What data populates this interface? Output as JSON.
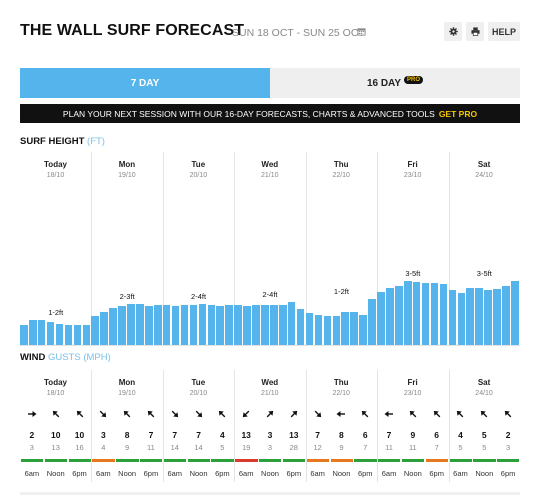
{
  "header": {
    "title": "THE WALL SURF FORECAST",
    "date_range": "SUN 18 OCT - SUN 25 OCT",
    "calendar_icon": "calendar-icon",
    "settings_icon": "gear-icon",
    "print_icon": "print-icon",
    "help_label": "HELP"
  },
  "tabs": [
    {
      "label": "7 DAY",
      "active": true
    },
    {
      "label": "16 DAY",
      "badge": "PRO",
      "active": false
    }
  ],
  "banner": {
    "text": "PLAN YOUR NEXT SESSION WITH OUR 16-DAY FORECASTS, CHARTS & ADVANCED TOOLS",
    "cta": "GET PRO"
  },
  "surf": {
    "label": "SURF HEIGHT",
    "unit": "(FT)"
  },
  "wind": {
    "label": "WIND",
    "unit": "GUSTS (MPH)"
  },
  "days": [
    {
      "name": "Today",
      "date": "18/10"
    },
    {
      "name": "Mon",
      "date": "19/10"
    },
    {
      "name": "Tue",
      "date": "20/10"
    },
    {
      "name": "Wed",
      "date": "21/10"
    },
    {
      "name": "Thu",
      "date": "22/10"
    },
    {
      "name": "Fri",
      "date": "23/10"
    },
    {
      "name": "Sat",
      "date": "24/10"
    }
  ],
  "chart_data": {
    "type": "bar",
    "ylabel": "SURF HEIGHT (FT)",
    "ylim": [
      0,
      10
    ],
    "values": [
      1.2,
      1.55,
      1.55,
      1.4,
      1.3,
      1.2,
      1.2,
      1.2,
      1.75,
      2.05,
      2.25,
      2.4,
      2.5,
      2.5,
      2.4,
      2.45,
      2.45,
      2.4,
      2.45,
      2.45,
      2.5,
      2.45,
      2.4,
      2.45,
      2.45,
      2.4,
      2.45,
      2.45,
      2.45,
      2.45,
      2.65,
      2.2,
      1.95,
      1.85,
      1.8,
      1.75,
      2.0,
      2.0,
      1.85,
      2.8,
      3.25,
      3.5,
      3.65,
      3.9,
      3.85,
      3.8,
      3.8,
      3.75,
      3.4,
      3.2,
      3.5,
      3.5,
      3.35,
      3.45,
      3.6,
      3.9
    ],
    "day_labels": [
      "1-2ft",
      "2-3ft",
      "2-4ft",
      "2-4ft",
      "1-2ft",
      "3-5ft",
      "3-5ft"
    ]
  },
  "wind_data": {
    "times": [
      "6am",
      "Noon",
      "6pm"
    ],
    "speed": [
      [
        2,
        10,
        10
      ],
      [
        3,
        8,
        7
      ],
      [
        7,
        7,
        4
      ],
      [
        13,
        3,
        13
      ],
      [
        7,
        8,
        6
      ],
      [
        7,
        9,
        6
      ],
      [
        4,
        5,
        2
      ]
    ],
    "gusts": [
      [
        3,
        13,
        16
      ],
      [
        4,
        9,
        11
      ],
      [
        14,
        14,
        5
      ],
      [
        19,
        3,
        28
      ],
      [
        12,
        9,
        7
      ],
      [
        11,
        11,
        7
      ],
      [
        5,
        5,
        3
      ]
    ],
    "direction_deg": [
      [
        90,
        315,
        315
      ],
      [
        135,
        315,
        315
      ],
      [
        135,
        135,
        315
      ],
      [
        225,
        45,
        45
      ],
      [
        135,
        270,
        315
      ],
      [
        270,
        315,
        315
      ],
      [
        315,
        315,
        315
      ]
    ],
    "colors": [
      [
        "#2ca03b",
        "#2ca03b",
        "#2ca03b"
      ],
      [
        "#e8781e",
        "#2ca03b",
        "#2ca03b"
      ],
      [
        "#2ca03b",
        "#2ca03b",
        "#2ca03b"
      ],
      [
        "#d93a2b",
        "#2ca03b",
        "#2ca03b"
      ],
      [
        "#e8781e",
        "#e8781e",
        "#2ca03b"
      ],
      [
        "#2ca03b",
        "#2ca03b",
        "#e8781e"
      ],
      [
        "#2ca03b",
        "#2ca03b",
        "#2ca03b"
      ]
    ]
  },
  "colors": {
    "accent": "#55b4ec",
    "banner_bg": "#111111",
    "cta": "#f5c400",
    "wind_green": "#2ca03b",
    "wind_orange": "#e8781e",
    "wind_red": "#d93a2b"
  }
}
